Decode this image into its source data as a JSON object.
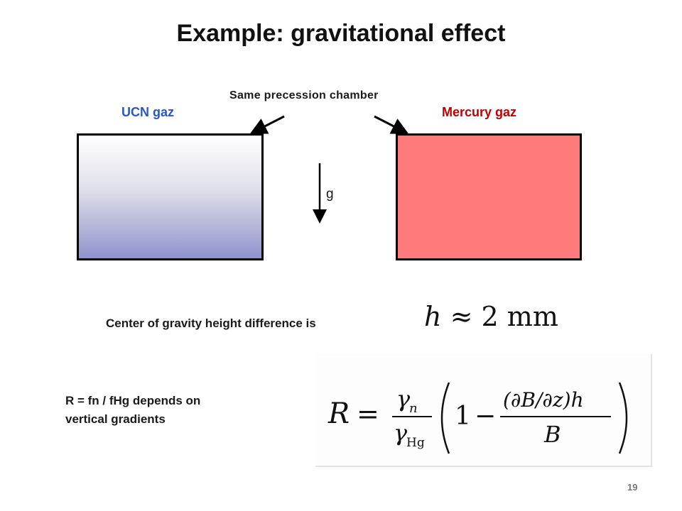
{
  "title": "Example: gravitational effect",
  "chamber_label": "Same precession chamber",
  "ucn": {
    "label": "UCN gaz",
    "label_color": "#2a56c6",
    "gradient_bottom": "#8f93cc"
  },
  "mercury": {
    "label": "Mercury gaz",
    "label_color": "#c00000",
    "fill": "#ff7a7a"
  },
  "gravity_label": "g",
  "cog_text": "Center of gravity height difference  is",
  "h_equation": {
    "symbol": "h",
    "relation": "≈",
    "value": "2",
    "unit": "mm"
  },
  "ratio_text_line1": "R = fn / fHg depends on",
  "ratio_text_line2": "vertical gradients",
  "r_equation": {
    "lhs": "R",
    "eq": "=",
    "gamma_n": "γ",
    "gamma_n_sub": "n",
    "gamma_hg": "γ",
    "gamma_hg_sub": "Hg",
    "one": "1",
    "minus": "−",
    "numerator": "(∂B/∂z)h",
    "denominator": "B"
  },
  "page_number": "19"
}
